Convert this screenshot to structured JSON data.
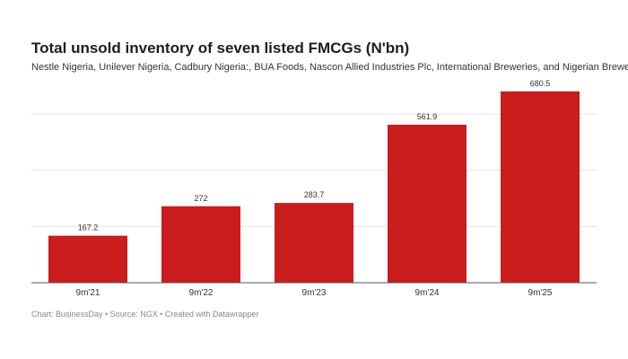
{
  "chart_data": {
    "type": "bar",
    "title": "Total unsold inventory of seven listed FMCGs (N'bn)",
    "subtitle": "Nestle Nigeria,  Unilever Nigeria, Cadbury Nigeria:, BUA Foods, Nascon Allied Industries Plc,  International Breweries, and Nigerian Breweries",
    "categories": [
      "9m'21",
      "9m'22",
      "9m'23",
      "9m'24",
      "9m'25"
    ],
    "values": [
      167.2,
      272,
      283.7,
      561.9,
      680.5
    ],
    "value_labels": [
      "167.2",
      "272",
      "283.7",
      "561.9",
      "680.5"
    ],
    "xlabel": "",
    "ylabel": "",
    "ylim": [
      0,
      700
    ],
    "gridlines": [
      200,
      400,
      600
    ],
    "grid": true,
    "bar_color": "#c91d1e",
    "footer": "Chart: BusinessDay • Source: NGX • Created with Datawrapper"
  }
}
